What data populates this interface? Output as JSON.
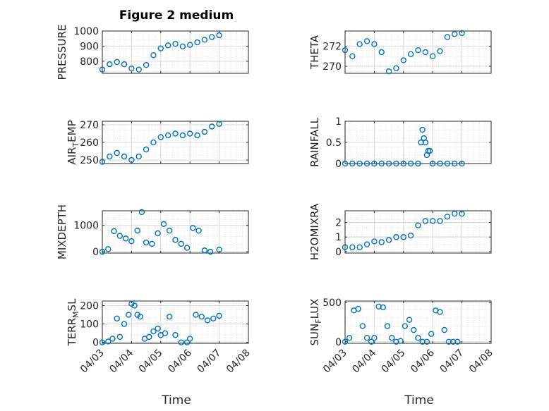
{
  "figure": {
    "title": "Figure 2 medium",
    "xlabel": "Time"
  },
  "colors": {
    "marker": "#0072BD",
    "axis": "#262626",
    "grid": "#d9d9d9"
  },
  "chart_data": [
    {
      "type": "scatter",
      "ylabel": "PRESSURE",
      "ylabel_sub": "",
      "xticks": [
        "04/03",
        "04/04",
        "04/05",
        "04/06",
        "04/07",
        "04/08"
      ],
      "xtick_labels_shown": false,
      "xlim": [
        "04/03",
        "04/08"
      ],
      "ylim": [
        720,
        1000
      ],
      "yticks": [
        800,
        900,
        1000
      ],
      "grid": true,
      "x": [
        0,
        0.25,
        0.5,
        0.75,
        1,
        1.25,
        1.5,
        1.75,
        2,
        2.25,
        2.5,
        2.75,
        3,
        3.25,
        3.5,
        3.75,
        4
      ],
      "y": [
        745,
        780,
        795,
        780,
        752,
        745,
        775,
        840,
        885,
        905,
        915,
        898,
        908,
        925,
        942,
        960,
        972
      ]
    },
    {
      "type": "scatter",
      "ylabel": "THETA",
      "ylabel_sub": "",
      "xticks": [
        "04/03",
        "04/04",
        "04/05",
        "04/06",
        "04/07",
        "04/08"
      ],
      "xtick_labels_shown": false,
      "xlim": [
        "04/03",
        "04/08"
      ],
      "ylim": [
        269.3,
        273.5
      ],
      "yticks": [
        270,
        272
      ],
      "grid": true,
      "x": [
        0,
        0.25,
        0.5,
        0.75,
        1,
        1.25,
        1.5,
        1.75,
        2,
        2.25,
        2.5,
        2.75,
        3,
        3.25,
        3.5,
        3.75,
        4
      ],
      "y": [
        271.6,
        271.0,
        272.2,
        272.5,
        272.2,
        271.4,
        269.5,
        269.8,
        270.6,
        271.2,
        271.6,
        271.4,
        271.0,
        271.5,
        272.9,
        273.2,
        273.3
      ]
    },
    {
      "type": "scatter",
      "ylabel": "AIR",
      "ylabel_sub": "T",
      "ylabel_rest": "EMP",
      "xticks": [
        "04/03",
        "04/04",
        "04/05",
        "04/06",
        "04/07",
        "04/08"
      ],
      "xtick_labels_shown": false,
      "xlim": [
        "04/03",
        "04/08"
      ],
      "ylim": [
        248,
        272
      ],
      "yticks": [
        250,
        260,
        270
      ],
      "grid": true,
      "x": [
        0,
        0.25,
        0.5,
        0.75,
        1,
        1.25,
        1.5,
        1.75,
        2,
        2.25,
        2.5,
        2.75,
        3,
        3.25,
        3.5,
        3.75,
        4
      ],
      "y": [
        249,
        252,
        254,
        252,
        250,
        252,
        256,
        260,
        263,
        264,
        265,
        264,
        265,
        264,
        266,
        269,
        270.5
      ]
    },
    {
      "type": "scatter",
      "ylabel": "RAINFALL",
      "ylabel_sub": "",
      "xticks": [
        "04/03",
        "04/04",
        "04/05",
        "04/06",
        "04/07",
        "04/08"
      ],
      "xtick_labels_shown": false,
      "xlim": [
        "04/03",
        "04/08"
      ],
      "ylim": [
        0,
        1
      ],
      "yticks": [
        0,
        0.5,
        1
      ],
      "grid": true,
      "x": [
        0,
        0.25,
        0.5,
        0.75,
        1,
        1.25,
        1.5,
        1.75,
        2,
        2.25,
        2.5,
        2.6,
        2.65,
        2.7,
        2.75,
        2.8,
        2.85,
        2.9,
        3,
        3.25,
        3.5,
        3.75,
        4
      ],
      "y": [
        0,
        0,
        0,
        0,
        0,
        0,
        0,
        0,
        0,
        0,
        0,
        0.5,
        0.8,
        0.6,
        0.5,
        0.2,
        0.3,
        0.3,
        0,
        0,
        0,
        0,
        0
      ]
    },
    {
      "type": "scatter",
      "ylabel": "MIXDEPTH",
      "ylabel_sub": "",
      "xticks": [
        "04/03",
        "04/04",
        "04/05",
        "04/06",
        "04/07",
        "04/08"
      ],
      "xtick_labels_shown": false,
      "xlim": [
        "04/03",
        "04/08"
      ],
      "ylim": [
        -50,
        1550
      ],
      "yticks": [
        0,
        1000
      ],
      "grid": true,
      "x": [
        0,
        0.2,
        0.4,
        0.6,
        0.8,
        1.0,
        1.2,
        1.35,
        1.5,
        1.7,
        1.9,
        2.1,
        2.3,
        2.5,
        2.7,
        2.9,
        3.1,
        3.3,
        3.5,
        3.7,
        4.0
      ],
      "y": [
        0,
        100,
        780,
        600,
        500,
        400,
        800,
        1500,
        350,
        300,
        700,
        1050,
        800,
        450,
        300,
        150,
        900,
        800,
        50,
        0,
        80
      ]
    },
    {
      "type": "scatter",
      "ylabel": "H2OMIXRA",
      "ylabel_sub": "",
      "xticks": [
        "04/03",
        "04/04",
        "04/05",
        "04/06",
        "04/07",
        "04/08"
      ],
      "xtick_labels_shown": false,
      "xlim": [
        "04/03",
        "04/08"
      ],
      "ylim": [
        -0.1,
        2.8
      ],
      "yticks": [
        0,
        1,
        2
      ],
      "grid": true,
      "x": [
        0,
        0.25,
        0.5,
        0.75,
        1,
        1.25,
        1.5,
        1.75,
        2,
        2.25,
        2.5,
        2.75,
        3,
        3.25,
        3.5,
        3.75,
        4
      ],
      "y": [
        0.3,
        0.3,
        0.3,
        0.5,
        0.7,
        0.65,
        0.8,
        1.0,
        1.0,
        1.1,
        1.8,
        2.1,
        2.1,
        2.1,
        2.4,
        2.6,
        2.6
      ]
    },
    {
      "type": "scatter",
      "ylabel": "TERR",
      "ylabel_sub": "M",
      "ylabel_rest": "SL",
      "xticks": [
        "04/03",
        "04/04",
        "04/05",
        "04/06",
        "04/07",
        "04/08"
      ],
      "xtick_labels_shown": true,
      "xlim": [
        "04/03",
        "04/08"
      ],
      "ylim": [
        -5,
        225
      ],
      "yticks": [
        0,
        100,
        200
      ],
      "grid": true,
      "x": [
        0,
        0.2,
        0.35,
        0.5,
        0.6,
        0.75,
        0.9,
        1.0,
        1.1,
        1.2,
        1.3,
        1.45,
        1.6,
        1.75,
        1.9,
        2.0,
        2.15,
        2.3,
        2.5,
        2.7,
        2.9,
        3.0,
        3.2,
        3.4,
        3.6,
        3.8,
        4.0
      ],
      "y": [
        0,
        5,
        20,
        130,
        30,
        100,
        150,
        210,
        200,
        150,
        140,
        20,
        30,
        60,
        75,
        40,
        50,
        140,
        40,
        0,
        0,
        20,
        150,
        140,
        120,
        130,
        145
      ]
    },
    {
      "type": "scatter",
      "ylabel": "SUN",
      "ylabel_sub": "F",
      "ylabel_rest": "LUX",
      "xticks": [
        "04/03",
        "04/04",
        "04/05",
        "04/06",
        "04/07",
        "04/08"
      ],
      "xtick_labels_shown": true,
      "xlim": [
        "04/03",
        "04/08"
      ],
      "ylim": [
        -20,
        520
      ],
      "yticks": [
        0,
        500
      ],
      "grid": true,
      "x": [
        0,
        0.15,
        0.3,
        0.45,
        0.6,
        0.75,
        0.9,
        1.0,
        1.15,
        1.3,
        1.45,
        1.6,
        1.75,
        1.9,
        2.05,
        2.2,
        2.35,
        2.5,
        2.65,
        2.8,
        2.95,
        3.1,
        3.25,
        3.4,
        3.55,
        3.7,
        3.85
      ],
      "y": [
        0,
        50,
        400,
        420,
        200,
        50,
        0,
        50,
        450,
        440,
        200,
        50,
        0,
        10,
        200,
        280,
        150,
        50,
        0,
        0,
        100,
        400,
        380,
        150,
        0,
        0,
        0
      ]
    }
  ]
}
